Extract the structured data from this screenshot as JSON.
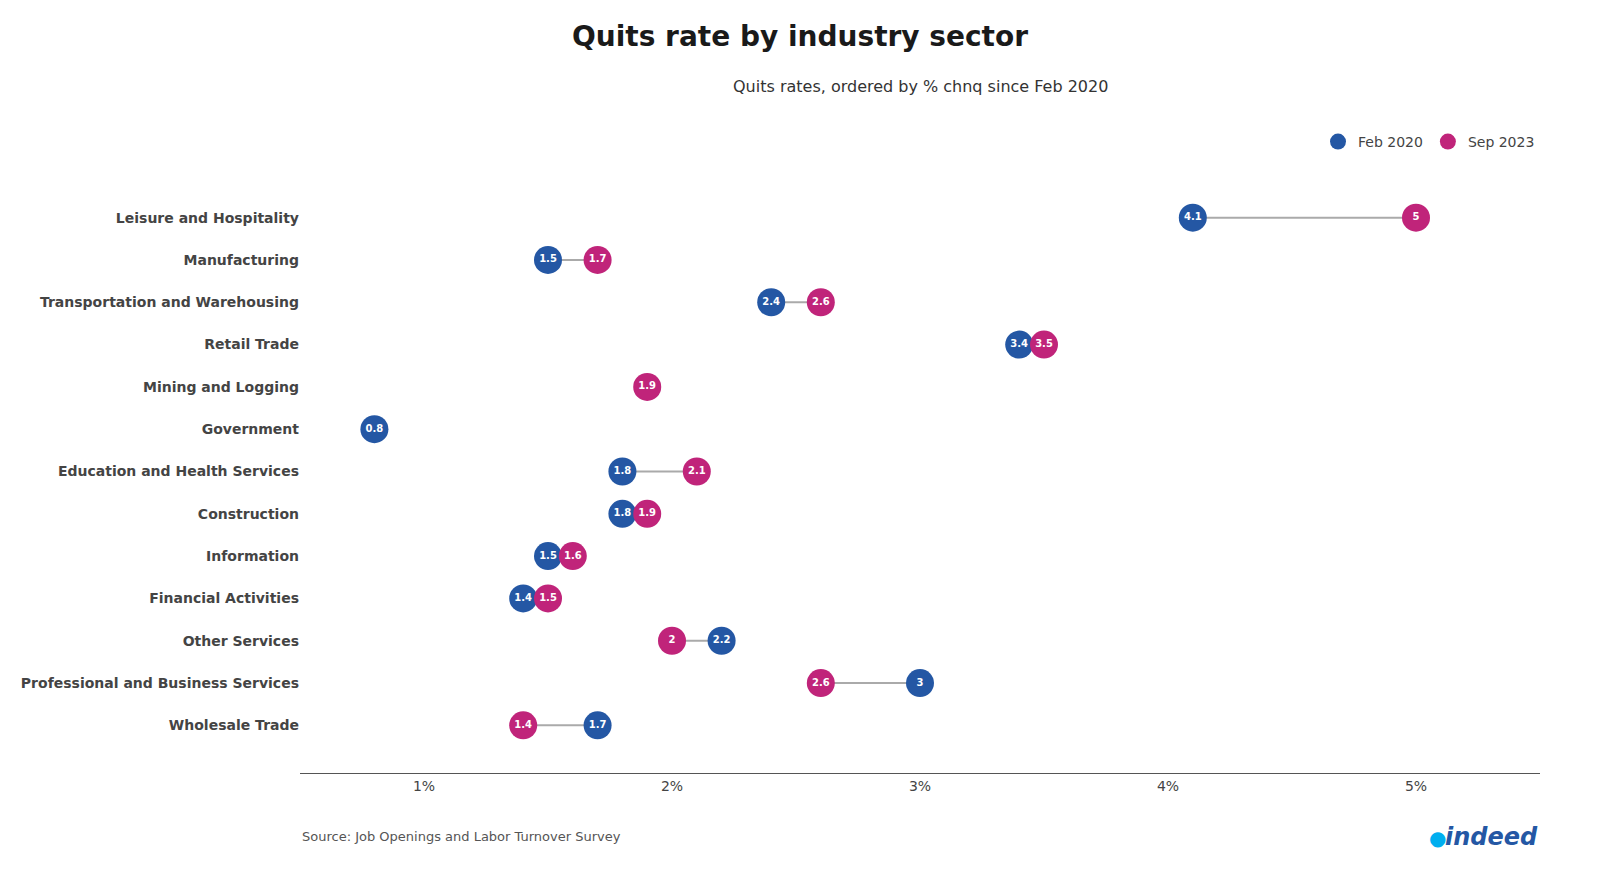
{
  "chart_data": {
    "type": "dumbbell",
    "title": "Quits rate by industry sector",
    "subtitle": "Quits rates, ordered by % chnq since Feb 2020",
    "categories": [
      "Leisure and Hospitality",
      "Manufacturing",
      "Transportation and Warehousing",
      "Retail Trade",
      "Mining and Logging",
      "Government",
      "Education and Health Services",
      "Construction",
      "Information",
      "Financial Activities",
      "Other Services",
      "Professional and Business Services",
      "Wholesale Trade"
    ],
    "series": [
      {
        "name": "Feb 2020",
        "color": "#2457A4",
        "values": [
          4.1,
          1.5,
          2.4,
          3.4,
          null,
          0.8,
          1.8,
          1.8,
          1.5,
          1.4,
          2.2,
          3.0,
          1.7
        ]
      },
      {
        "name": "Sep 2023",
        "color": "#C0247A",
        "values": [
          5.0,
          1.7,
          2.6,
          3.5,
          1.9,
          null,
          2.1,
          1.9,
          1.6,
          1.5,
          2.0,
          2.6,
          1.4
        ]
      }
    ],
    "connector": {
      "color": "#AAAAAA"
    },
    "orientation": "horizontal",
    "data_labels": true,
    "xlim": [
      0.5,
      5.5
    ],
    "xticks": [
      {
        "value": 1.0,
        "label": "1%"
      },
      {
        "value": 2.0,
        "label": "2%"
      },
      {
        "value": 3.0,
        "label": "3%"
      },
      {
        "value": 4.0,
        "label": "4%"
      },
      {
        "value": 5.0,
        "label": "5%"
      }
    ],
    "grid": false,
    "legend": "upper right",
    "annotations": [
      {
        "text": "Source: Job Openings and Labor Turnover Survey",
        "color": "#555555"
      },
      {
        "text": "●",
        "color": "#00AEEF"
      },
      {
        "text": "indeed",
        "color": "#2457A4"
      }
    ]
  }
}
